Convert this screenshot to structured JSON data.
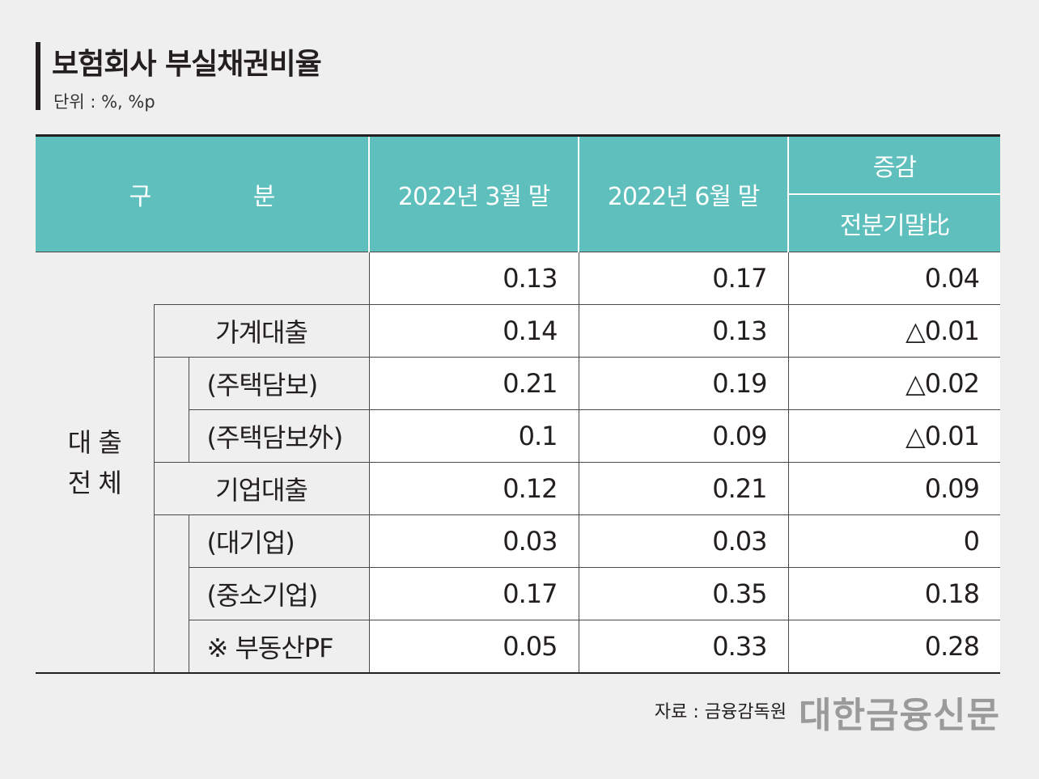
{
  "title": "보험회사 부실채권비율",
  "unit": "단위 : %, %p",
  "header": {
    "gubun_1": "구",
    "gubun_2": "분",
    "col_mar": "2022년 3월 말",
    "col_jun": "2022년 6월 말",
    "col_change": "증감",
    "col_change_sub": "전분기말比"
  },
  "row_group_label_1": "대 출",
  "row_group_label_2": "전 체",
  "rows": [
    {
      "label": "",
      "mar": "0.13",
      "jun": "0.17",
      "chg": "0.04"
    },
    {
      "label": "가계대출",
      "mar": "0.14",
      "jun": "0.13",
      "chg": "△0.01"
    },
    {
      "label": "(주택담보)",
      "mar": "0.21",
      "jun": "0.19",
      "chg": "△0.02"
    },
    {
      "label": "(주택담보外)",
      "mar": "0.1",
      "jun": "0.09",
      "chg": "△0.01"
    },
    {
      "label": "기업대출",
      "mar": "0.12",
      "jun": "0.21",
      "chg": "0.09"
    },
    {
      "label": "(대기업)",
      "mar": "0.03",
      "jun": "0.03",
      "chg": "0"
    },
    {
      "label": "(중소기업)",
      "mar": "0.17",
      "jun": "0.35",
      "chg": "0.18"
    },
    {
      "label": "※ 부동산PF",
      "mar": "0.05",
      "jun": "0.33",
      "chg": "0.28"
    }
  ],
  "source": "자료 : 금융감독원",
  "logo": "대한금융신문"
}
